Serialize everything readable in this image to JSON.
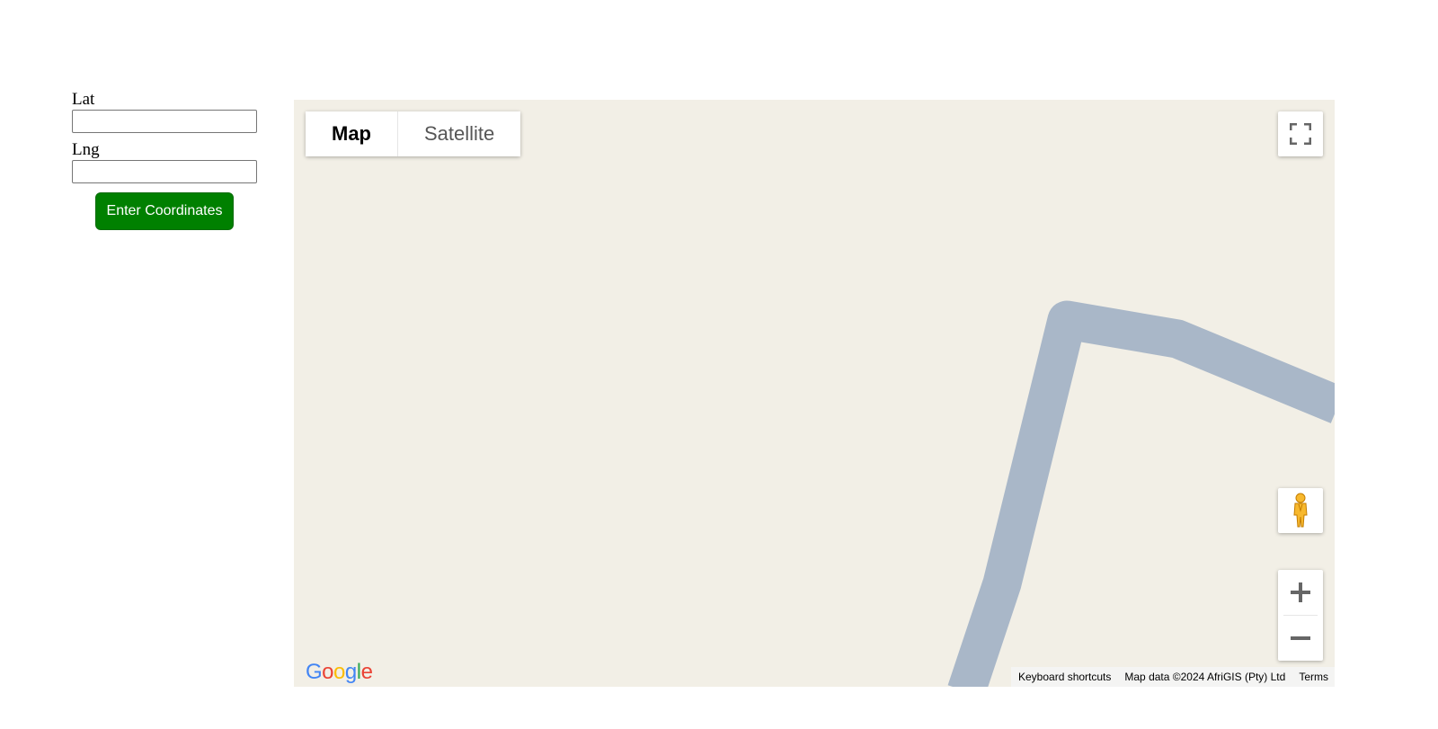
{
  "form": {
    "lat_label": "Lat",
    "lat_value": "",
    "lng_label": "Lng",
    "lng_value": "",
    "submit_label": "Enter Coordinates",
    "submit_color": "#008000"
  },
  "map": {
    "background_color": "#f2efe6",
    "road_color": "#a9b7c8",
    "map_type": {
      "map_label": "Map",
      "satellite_label": "Satellite",
      "selected": "Map"
    },
    "controls": {
      "fullscreen_icon": "fullscreen-icon",
      "pegman_icon": "pegman-icon",
      "zoom_in_icon": "plus-icon",
      "zoom_out_icon": "minus-icon"
    },
    "logo_text": "Google",
    "attribution": {
      "keyboard_shortcuts": "Keyboard shortcuts",
      "map_data": "Map data ©2024 AfriGIS (Pty) Ltd",
      "terms": "Terms"
    }
  }
}
